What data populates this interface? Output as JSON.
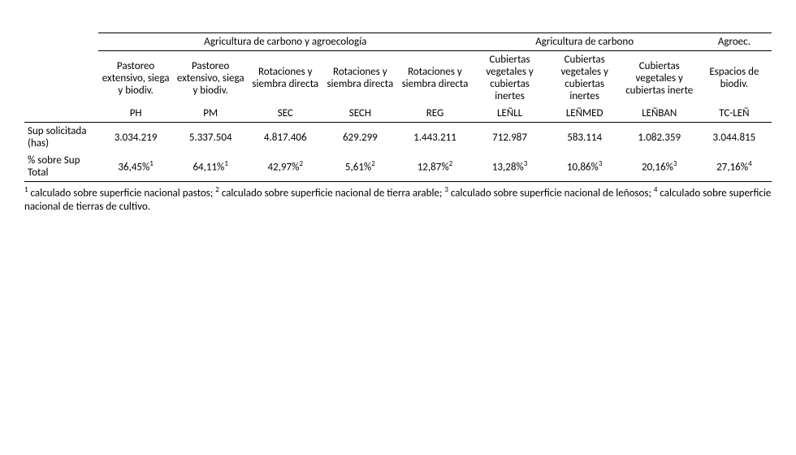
{
  "groups": {
    "g1": "Agricultura de carbono y agroecología",
    "g2": "Agricultura de carbono",
    "g3": "Agroec."
  },
  "subheaders": {
    "c1": "Pastoreo extensivo, siega y biodiv.",
    "c2": "Pastoreo extensivo, siega y biodiv.",
    "c3": "Rotaciones y siembra directa",
    "c4": "Rotaciones y siembra directa",
    "c5": "Rotaciones y siembra directa",
    "c6": "Cubiertas vegetales y cubiertas inertes",
    "c7": "Cubiertas vegetales y cubiertas inertes",
    "c8": "Cubiertas vegetales y cubiertas inerte",
    "c9": "Espacios de biodiv."
  },
  "codes": {
    "c1": "PH",
    "c2": "PM",
    "c3": "SEC",
    "c4": "SECH",
    "c5": "REG",
    "c6": "LEÑLL",
    "c7": "LEÑMED",
    "c8": "LEÑBAN",
    "c9": "TC-LEÑ"
  },
  "rows": {
    "r1label": "Sup solicitada (has)",
    "r1": {
      "c1": "3.034.219",
      "c2": "5.337.504",
      "c3": "4.817.406",
      "c4": "629.299",
      "c5": "1.443.211",
      "c6": "712.987",
      "c7": "583.114",
      "c8": "1.082.359",
      "c9": "3.044.815"
    },
    "r2label": "% sobre Sup Total",
    "r2": {
      "c1": "36,45%",
      "c2": "64,11%",
      "c3": "42,97%",
      "c4": "5,61%",
      "c5": "12,87%",
      "c6": "13,28%",
      "c7": "10,86%",
      "c8": "20,16%",
      "c9": "27,16%"
    },
    "r2sup": {
      "c1": "1",
      "c2": "1",
      "c3": "2",
      "c4": "2",
      "c5": "2",
      "c6": "3",
      "c7": "3",
      "c8": "3",
      "c9": "4"
    }
  },
  "footnotes": {
    "f1": "calculado sobre superficie nacional pastos;",
    "f2": "calculado sobre superficie nacional de tierra arable;",
    "f3": "calculado sobre superficie nacional de leñosos;",
    "f4": "calculado sobre superficie nacional de tierras de cultivo."
  }
}
